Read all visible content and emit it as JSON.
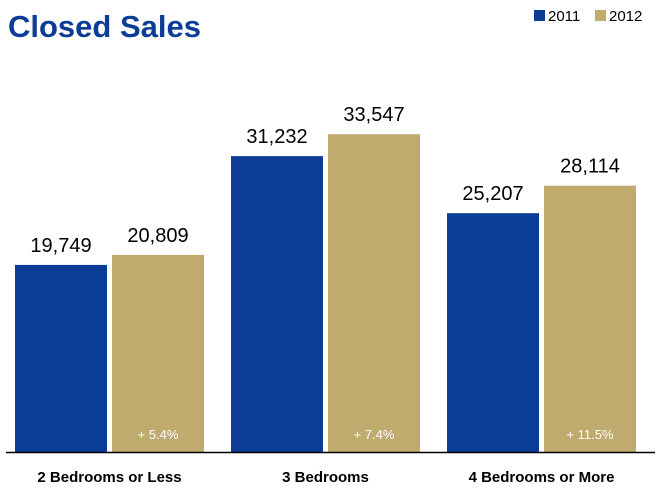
{
  "chart_data": {
    "type": "bar",
    "title": "Closed Sales",
    "categories": [
      "2 Bedrooms or Less",
      "3 Bedrooms",
      "4 Bedrooms or More"
    ],
    "series": [
      {
        "name": "2011",
        "values": [
          19749,
          31232,
          25207
        ],
        "labels": [
          "19,749",
          "31,232",
          "25,207"
        ],
        "color": "#0c3d96"
      },
      {
        "name": "2012",
        "values": [
          20809,
          33547,
          28114
        ],
        "labels": [
          "20,809",
          "33,547",
          "28,114"
        ],
        "color": "#bfab6e"
      }
    ],
    "changes": [
      "+ 5.4%",
      "+ 7.4%",
      "+ 11.5%"
    ],
    "ylim": [
      0,
      38000
    ],
    "legend_position": "top-right",
    "grid": false,
    "title_color": "#0c3d96",
    "axis_color": "#000000"
  }
}
